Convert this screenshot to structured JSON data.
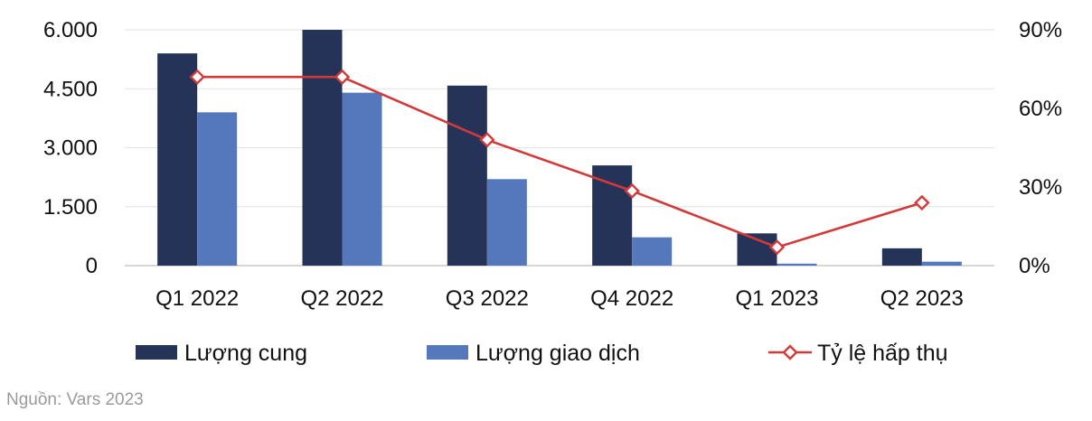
{
  "chart_data": {
    "type": "bar",
    "categories": [
      "Q1 2022",
      "Q2 2022",
      "Q3 2022",
      "Q4 2022",
      "Q1 2023",
      "Q2 2023"
    ],
    "series": [
      {
        "name": "Lượng cung",
        "type": "bar",
        "axis": "left",
        "color": "#253358",
        "values": [
          5400,
          6000,
          4580,
          2550,
          820,
          440
        ]
      },
      {
        "name": "Lượng giao dịch",
        "type": "bar",
        "axis": "left",
        "color": "#5577bb",
        "values": [
          3900,
          4400,
          2200,
          720,
          50,
          100
        ]
      },
      {
        "name": "Tỷ lệ hấp thụ",
        "type": "line",
        "axis": "right",
        "color": "#d23a3a",
        "marker": "diamond-open",
        "values": [
          72,
          72,
          48,
          28.5,
          7,
          24
        ]
      }
    ],
    "y_left": {
      "ticks": [
        "0",
        "1.500",
        "3.000",
        "4.500",
        "6.000"
      ],
      "tick_values": [
        0,
        1500,
        3000,
        4500,
        6000
      ],
      "ylim": [
        0,
        6000
      ]
    },
    "y_right": {
      "ticks": [
        "0%",
        "30%",
        "60%",
        "90%"
      ],
      "tick_values": [
        0,
        30,
        60,
        90
      ],
      "ylim": [
        0,
        90
      ]
    },
    "grid": true,
    "legend_position": "bottom"
  },
  "source": "Nguồn: Vars 2023"
}
